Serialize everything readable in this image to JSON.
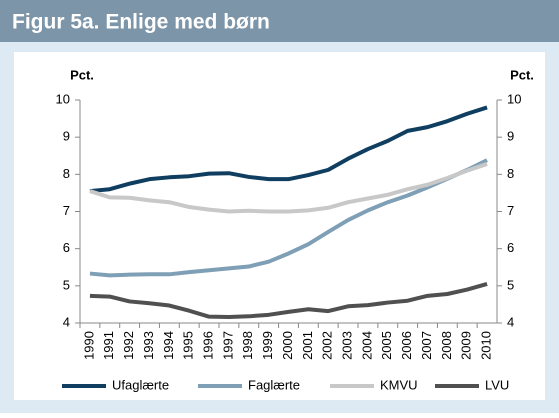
{
  "chart_data": {
    "type": "line",
    "title": "Figur 5a. Enlige med børn",
    "y_label": "Pct.",
    "y2_label": "Pct.",
    "categories": [
      "1990",
      "1991",
      "1992",
      "1993",
      "1994",
      "1995",
      "1996",
      "1997",
      "1998",
      "1999",
      "2000",
      "2001",
      "2002",
      "2003",
      "2004",
      "2005",
      "2006",
      "2007",
      "2008",
      "2009",
      "2010"
    ],
    "series": [
      {
        "name": "Ufaglærte",
        "color": "#0f3e60",
        "values": [
          7.55,
          7.6,
          7.75,
          7.87,
          7.92,
          7.95,
          8.02,
          8.03,
          7.93,
          7.87,
          7.87,
          7.98,
          8.12,
          8.42,
          8.68,
          8.9,
          9.17,
          9.27,
          9.43,
          9.63,
          9.8
        ]
      },
      {
        "name": "Faglærte",
        "color": "#7e9fb5",
        "values": [
          5.33,
          5.28,
          5.3,
          5.31,
          5.31,
          5.37,
          5.42,
          5.47,
          5.52,
          5.65,
          5.87,
          6.12,
          6.45,
          6.77,
          7.03,
          7.25,
          7.43,
          7.65,
          7.88,
          8.12,
          8.38
        ]
      },
      {
        "name": "KMVU",
        "color": "#c8c8c8",
        "values": [
          7.55,
          7.38,
          7.37,
          7.3,
          7.25,
          7.12,
          7.05,
          7.0,
          7.02,
          7.0,
          7.0,
          7.03,
          7.1,
          7.25,
          7.35,
          7.45,
          7.6,
          7.72,
          7.9,
          8.1,
          8.28
        ]
      },
      {
        "name": "LVU",
        "color": "#505050",
        "values": [
          4.73,
          4.71,
          4.58,
          4.53,
          4.47,
          4.33,
          4.17,
          4.16,
          4.18,
          4.22,
          4.3,
          4.37,
          4.32,
          4.45,
          4.48,
          4.55,
          4.6,
          4.73,
          4.78,
          4.9,
          5.05
        ]
      }
    ],
    "ylim": [
      4,
      10
    ],
    "yticks": [
      4,
      5,
      6,
      7,
      8,
      9,
      10
    ],
    "y2lim": [
      4,
      10
    ],
    "y2ticks": [
      4,
      5,
      6,
      7,
      8,
      9,
      10
    ],
    "legend": "bottom"
  }
}
